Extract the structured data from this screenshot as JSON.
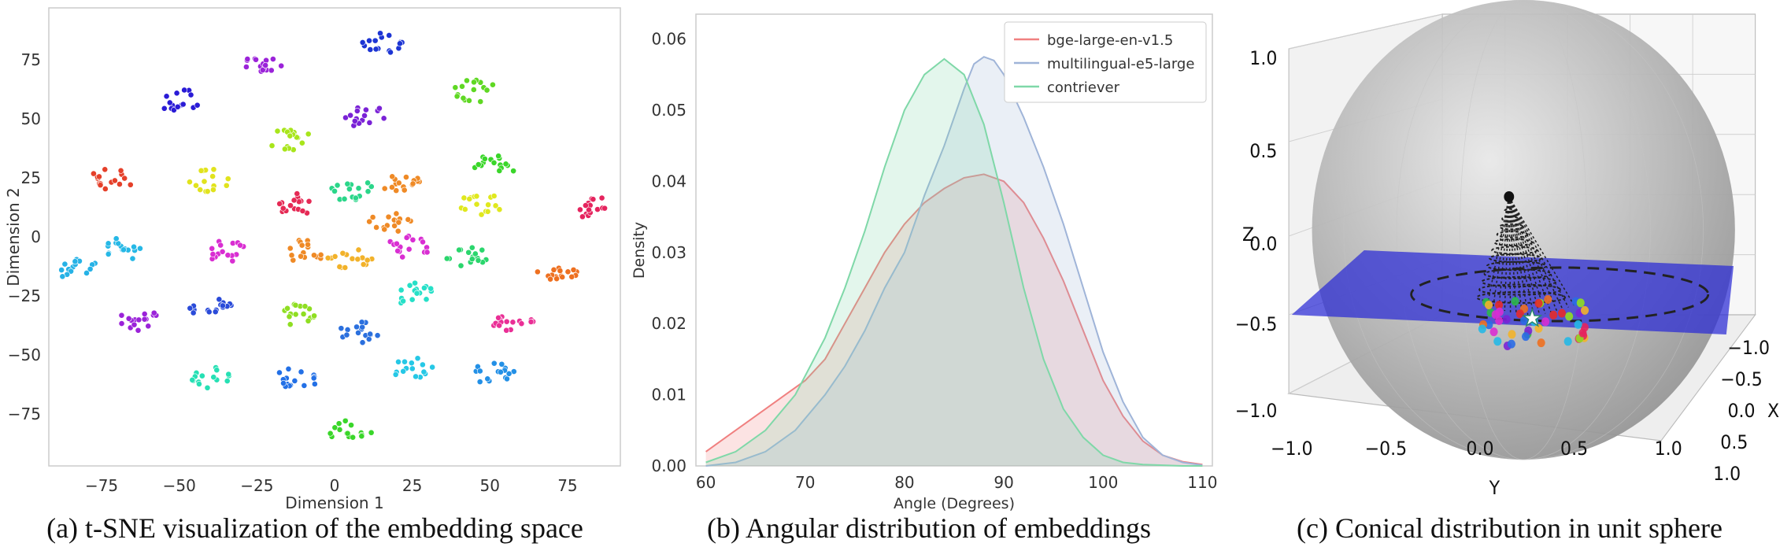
{
  "chart_data": [
    {
      "type": "scatter",
      "caption": "(a) t-SNE visualization of the embedding space",
      "xlabel": "Dimension 1",
      "ylabel": "Dimension 2",
      "xticks": [
        -75,
        -50,
        -25,
        0,
        25,
        50,
        75
      ],
      "yticks": [
        75,
        50,
        25,
        0,
        -25,
        -50,
        -75
      ],
      "xlim": [
        -92,
        92
      ],
      "ylim": [
        -97,
        97
      ],
      "clusters": [
        {
          "x": -50,
          "y": 58,
          "color": "#2a1bd6"
        },
        {
          "x": -22,
          "y": 73,
          "color": "#9b23d9"
        },
        {
          "x": 16,
          "y": 82,
          "color": "#1d35d4"
        },
        {
          "x": 45,
          "y": 62,
          "color": "#5fd823"
        },
        {
          "x": 10,
          "y": 51,
          "color": "#7a22d6"
        },
        {
          "x": -14,
          "y": 41,
          "color": "#a8e51b"
        },
        {
          "x": -72,
          "y": 24,
          "color": "#e5402a"
        },
        {
          "x": -40,
          "y": 24,
          "color": "#e1e31d"
        },
        {
          "x": -12,
          "y": 14,
          "color": "#e52a55"
        },
        {
          "x": 5,
          "y": 20,
          "color": "#2bd68a"
        },
        {
          "x": 21,
          "y": 24,
          "color": "#ef8a26"
        },
        {
          "x": 18,
          "y": 6,
          "color": "#ef8a26"
        },
        {
          "x": 52,
          "y": 30,
          "color": "#3ad62a"
        },
        {
          "x": 47,
          "y": 14,
          "color": "#e0e81e"
        },
        {
          "x": 82,
          "y": 13,
          "color": "#e5245e"
        },
        {
          "x": -67,
          "y": -5,
          "color": "#26b8e6"
        },
        {
          "x": -35,
          "y": -6,
          "color": "#d92ed2"
        },
        {
          "x": -10,
          "y": -6,
          "color": "#ef8a26"
        },
        {
          "x": 5,
          "y": -9,
          "color": "#f2b22a"
        },
        {
          "x": 24,
          "y": -4,
          "color": "#d92ed2"
        },
        {
          "x": 43,
          "y": -8,
          "color": "#2bd66d"
        },
        {
          "x": 72,
          "y": -14,
          "color": "#ee7020"
        },
        {
          "x": -82,
          "y": -14,
          "color": "#26b2e6"
        },
        {
          "x": -40,
          "y": -30,
          "color": "#2a4bd9"
        },
        {
          "x": -63,
          "y": -35,
          "color": "#9b23d9"
        },
        {
          "x": -11,
          "y": -33,
          "color": "#8fde22"
        },
        {
          "x": 8,
          "y": -40,
          "color": "#2b70de"
        },
        {
          "x": 25,
          "y": -24,
          "color": "#26e0c8"
        },
        {
          "x": 57,
          "y": -35,
          "color": "#ea2f96"
        },
        {
          "x": -40,
          "y": -60,
          "color": "#26e0b4"
        },
        {
          "x": -12,
          "y": -60,
          "color": "#2370e6"
        },
        {
          "x": 25,
          "y": -56,
          "color": "#26c8e6"
        },
        {
          "x": 51,
          "y": -58,
          "color": "#2390e6"
        },
        {
          "x": 5,
          "y": -82,
          "color": "#3ad62a"
        }
      ]
    },
    {
      "type": "area",
      "caption": "(b) Angular distribution of embeddings",
      "xlabel": "Angle (Degrees)",
      "ylabel": "Density",
      "xlim": [
        59,
        111
      ],
      "ylim": [
        0,
        0.0635
      ],
      "xticks": [
        60,
        70,
        80,
        90,
        100,
        110
      ],
      "yticks": [
        0.0,
        0.01,
        0.02,
        0.03,
        0.04,
        0.05,
        0.06
      ],
      "ytick_labels": [
        "0.00",
        "0.01",
        "0.02",
        "0.03",
        "0.04",
        "0.05",
        "0.06"
      ],
      "legend_position": "top-right",
      "series": [
        {
          "name": "bge-large-en-v1.5",
          "color": "#f08080",
          "x": [
            60,
            62,
            65,
            68,
            70,
            72,
            74,
            76,
            78,
            80,
            82,
            84,
            86,
            88,
            90,
            92,
            94,
            96,
            98,
            100,
            102,
            104,
            106,
            108,
            110
          ],
          "y": [
            0.002,
            0.004,
            0.007,
            0.01,
            0.012,
            0.015,
            0.02,
            0.025,
            0.03,
            0.034,
            0.037,
            0.039,
            0.0405,
            0.041,
            0.04,
            0.037,
            0.032,
            0.026,
            0.019,
            0.012,
            0.007,
            0.0035,
            0.0015,
            0.0006,
            0.0002
          ]
        },
        {
          "name": "multilingual-e5-large",
          "color": "#9fb4d8",
          "x": [
            60,
            63,
            66,
            69,
            72,
            74,
            76,
            78,
            80,
            82,
            84,
            86,
            87,
            88,
            89,
            90,
            92,
            94,
            96,
            98,
            100,
            102,
            104,
            106,
            108,
            110
          ],
          "y": [
            0.0,
            0.0005,
            0.002,
            0.005,
            0.01,
            0.014,
            0.019,
            0.025,
            0.03,
            0.038,
            0.045,
            0.053,
            0.0565,
            0.0575,
            0.057,
            0.055,
            0.049,
            0.042,
            0.034,
            0.025,
            0.016,
            0.009,
            0.004,
            0.0015,
            0.0005,
            0.0001
          ]
        },
        {
          "name": "contriever",
          "color": "#7fd8a8",
          "x": [
            60,
            63,
            66,
            69,
            72,
            74,
            76,
            78,
            80,
            82,
            84,
            86,
            88,
            90,
            92,
            94,
            96,
            98,
            100,
            102,
            104,
            106,
            108,
            110
          ],
          "y": [
            0.0005,
            0.002,
            0.005,
            0.01,
            0.018,
            0.025,
            0.033,
            0.042,
            0.05,
            0.055,
            0.0572,
            0.055,
            0.048,
            0.037,
            0.025,
            0.015,
            0.008,
            0.004,
            0.0015,
            0.0005,
            0.0002,
            0.0001,
            0.0,
            0.0
          ]
        }
      ]
    },
    {
      "type": "scatter",
      "caption": "(c) Conical distribution in unit sphere",
      "xlabel": "X",
      "ylabel": "Y",
      "zlabel": "Z",
      "zticks": [
        "1.0",
        "0.5",
        "0.0",
        "−0.5",
        "−1.0"
      ],
      "yticks": [
        "−1.0",
        "−0.5",
        "0.0",
        "0.5",
        "1.0"
      ],
      "xticks": [
        "−1.0",
        "−0.5",
        "0.0",
        "0.5",
        "1.0"
      ],
      "sphere_color": "#a9a9a9",
      "plane_color": "#2a2ad6",
      "apex_color": "#111111"
    }
  ]
}
